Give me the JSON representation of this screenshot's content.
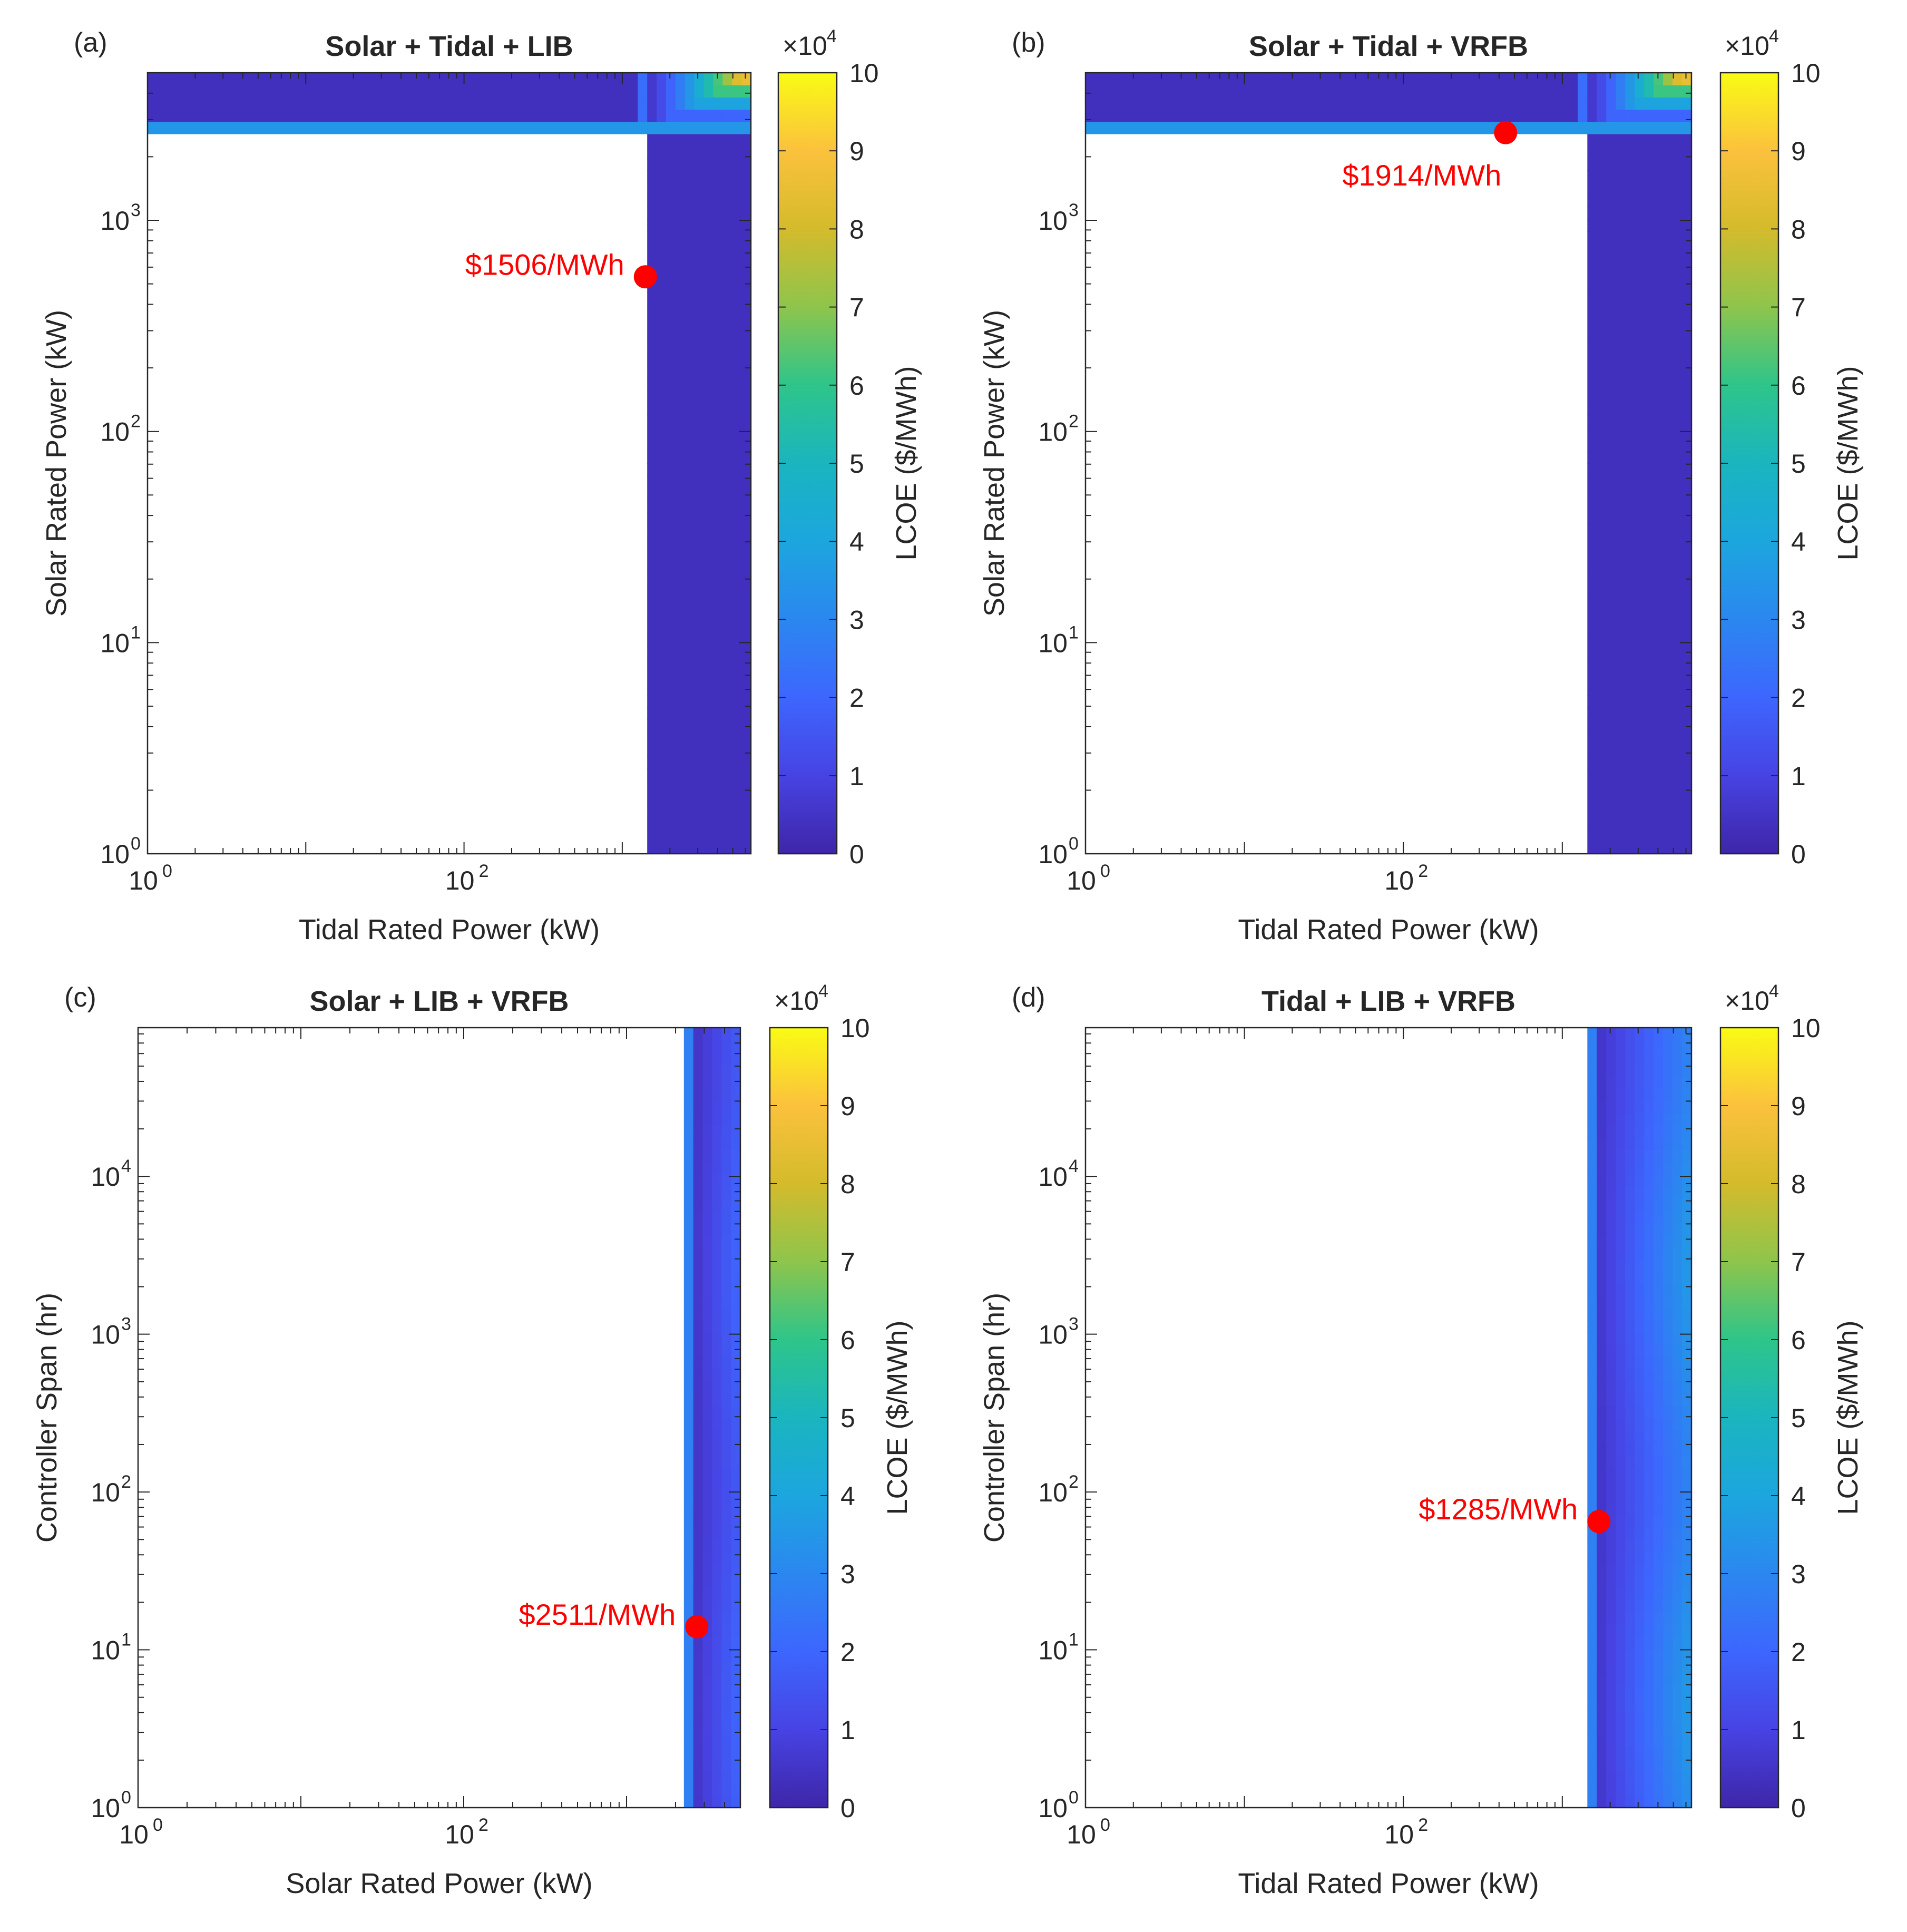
{
  "figure": {
    "colormap_stops": [
      "#3e26a8",
      "#4743e3",
      "#3d66fe",
      "#2b87f0",
      "#1ca6de",
      "#1ab5bf",
      "#2ec58a",
      "#8ec54c",
      "#d4bb2c",
      "#fbc13d",
      "#f9fb14"
    ]
  },
  "chart_data": [
    {
      "type": "heatmap",
      "panel_label": "(a)",
      "title": "Solar + Tidal + LIB",
      "xlabel": "Tidal Rated Power (kW)",
      "ylabel": "Solar Rated Power (kW)",
      "xscale": "log",
      "yscale": "log",
      "xlim": [
        1,
        6500
      ],
      "ylim": [
        1,
        5000
      ],
      "x_ticks": [
        {
          "base": "10",
          "exp": "0",
          "value": 1
        },
        {
          "base": "10",
          "exp": "2",
          "value": 100
        }
      ],
      "y_ticks": [
        {
          "base": "10",
          "exp": "0",
          "value": 1
        },
        {
          "base": "10",
          "exp": "1",
          "value": 10
        },
        {
          "base": "10",
          "exp": "2",
          "value": 100
        },
        {
          "base": "10",
          "exp": "3",
          "value": 1000
        }
      ],
      "colorbar": {
        "label": "LCOE ($/MWh)",
        "multiplier_base": "×10",
        "multiplier_exp": "4",
        "ticks": [
          "0",
          "1",
          "2",
          "3",
          "4",
          "5",
          "6",
          "7",
          "8",
          "9",
          "10"
        ],
        "min": 0,
        "max": 10
      },
      "feasible_region": {
        "solar_threshold_kw": 2700,
        "tidal_threshold_kw": 1400,
        "corner_blend": 0.45
      },
      "optimum": {
        "x": 1400,
        "y": 540,
        "label": "$1506/MWh",
        "label_side": "left"
      }
    },
    {
      "type": "heatmap",
      "panel_label": "(b)",
      "title": "Solar + Tidal + VRFB",
      "xlabel": "Tidal Rated Power (kW)",
      "ylabel": "Solar Rated Power (kW)",
      "xscale": "log",
      "yscale": "log",
      "xlim": [
        1,
        6500
      ],
      "ylim": [
        1,
        5000
      ],
      "x_ticks": [
        {
          "base": "10",
          "exp": "0",
          "value": 1
        },
        {
          "base": "10",
          "exp": "2",
          "value": 100
        }
      ],
      "y_ticks": [
        {
          "base": "10",
          "exp": "0",
          "value": 1
        },
        {
          "base": "10",
          "exp": "1",
          "value": 10
        },
        {
          "base": "10",
          "exp": "2",
          "value": 100
        },
        {
          "base": "10",
          "exp": "3",
          "value": 1000
        }
      ],
      "colorbar": {
        "label": "LCOE ($/MWh)",
        "multiplier_base": "×10",
        "multiplier_exp": "4",
        "ticks": [
          "0",
          "1",
          "2",
          "3",
          "4",
          "5",
          "6",
          "7",
          "8",
          "9",
          "10"
        ],
        "min": 0,
        "max": 10
      },
      "feasible_region": {
        "solar_threshold_kw": 2700,
        "tidal_threshold_kw": 1400,
        "corner_blend": 0.45
      },
      "optimum": {
        "x": 440,
        "y": 2600,
        "label": "$1914/MWh",
        "label_side": "below-left"
      }
    },
    {
      "type": "heatmap",
      "panel_label": "(c)",
      "title": "Solar + LIB + VRFB",
      "xlabel": "Solar Rated Power (kW)",
      "ylabel": "Controller Span (hr)",
      "xscale": "log",
      "yscale": "log",
      "xlim": [
        1,
        5000
      ],
      "ylim": [
        1,
        87600
      ],
      "x_ticks": [
        {
          "base": "10",
          "exp": "0",
          "value": 1
        },
        {
          "base": "10",
          "exp": "2",
          "value": 100
        }
      ],
      "y_ticks": [
        {
          "base": "10",
          "exp": "0",
          "value": 1
        },
        {
          "base": "10",
          "exp": "1",
          "value": 10
        },
        {
          "base": "10",
          "exp": "2",
          "value": 100
        },
        {
          "base": "10",
          "exp": "3",
          "value": 1000
        },
        {
          "base": "10",
          "exp": "4",
          "value": 10000
        }
      ],
      "colorbar": {
        "label": "LCOE ($/MWh)",
        "multiplier_base": "×10",
        "multiplier_exp": "4",
        "ticks": [
          "0",
          "1",
          "2",
          "3",
          "4",
          "5",
          "6",
          "7",
          "8",
          "9",
          "10"
        ],
        "min": 0,
        "max": 10
      },
      "feasible_region": {
        "x_threshold_kw": 2400,
        "max_value": 1.6
      },
      "optimum": {
        "x": 2700,
        "y": 14,
        "label": "$2511/MWh",
        "label_side": "left"
      }
    },
    {
      "type": "heatmap",
      "panel_label": "(d)",
      "title": "Tidal + LIB + VRFB",
      "xlabel": "Tidal Rated Power (kW)",
      "ylabel": "Controller Span (hr)",
      "xscale": "log",
      "yscale": "log",
      "xlim": [
        1,
        6500
      ],
      "ylim": [
        1,
        87600
      ],
      "x_ticks": [
        {
          "base": "10",
          "exp": "0",
          "value": 1
        },
        {
          "base": "10",
          "exp": "2",
          "value": 100
        }
      ],
      "y_ticks": [
        {
          "base": "10",
          "exp": "0",
          "value": 1
        },
        {
          "base": "10",
          "exp": "1",
          "value": 10
        },
        {
          "base": "10",
          "exp": "2",
          "value": 100
        },
        {
          "base": "10",
          "exp": "3",
          "value": 1000
        },
        {
          "base": "10",
          "exp": "4",
          "value": 10000
        }
      ],
      "colorbar": {
        "label": "LCOE ($/MWh)",
        "multiplier_base": "×10",
        "multiplier_exp": "4",
        "ticks": [
          "0",
          "1",
          "2",
          "3",
          "4",
          "5",
          "6",
          "7",
          "8",
          "9",
          "10"
        ],
        "min": 0,
        "max": 10
      },
      "feasible_region": {
        "x_threshold_kw": 1500,
        "max_value": 3.0
      },
      "optimum": {
        "x": 1700,
        "y": 65,
        "label": "$1285/MWh",
        "label_side": "left"
      }
    }
  ]
}
